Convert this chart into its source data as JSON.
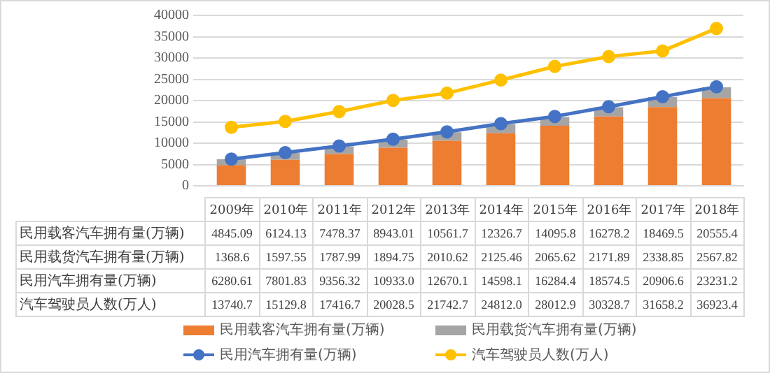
{
  "chart_data": {
    "type": "bar",
    "categories": [
      "2009年",
      "2010年",
      "2011年",
      "2012年",
      "2013年",
      "2014年",
      "2015年",
      "2016年",
      "2017年",
      "2018年"
    ],
    "stacked": true,
    "ylim": [
      0,
      40000
    ],
    "yticks": [
      0,
      5000,
      10000,
      15000,
      20000,
      25000,
      30000,
      35000,
      40000
    ],
    "grid": "y",
    "legend": "bottom",
    "series": [
      {
        "name": "民用载客汽车拥有量(万辆)",
        "color": "#ed7d31",
        "values": [
          4845.09,
          6124.13,
          7478.37,
          8943.01,
          10561.7,
          12326.7,
          14095.8,
          16278.2,
          18469.5,
          20555.4
        ],
        "value_labels": [
          "4845.09",
          "6124.13",
          "7478.37",
          "8943.01",
          "10561.7",
          "12326.7",
          "14095.8",
          "16278.2",
          "18469.5",
          "20555.4"
        ]
      },
      {
        "name": "民用载货汽车拥有量(万辆)",
        "color": "#a5a5a5",
        "values": [
          1368.6,
          1597.55,
          1787.99,
          1894.75,
          2010.62,
          2125.46,
          2065.62,
          2171.89,
          2338.85,
          2567.82
        ],
        "value_labels": [
          "1368.6",
          "1597.55",
          "1787.99",
          "1894.75",
          "2010.62",
          "2125.46",
          "2065.62",
          "2171.89",
          "2338.85",
          "2567.82"
        ]
      },
      {
        "name": "民用汽车拥有量(万辆)",
        "type": "line",
        "color": "#4472c4",
        "marker": "circle",
        "values": [
          6280.61,
          7801.83,
          9356.32,
          10933.0,
          12670.1,
          14598.1,
          16284.4,
          18574.5,
          20906.6,
          23231.2
        ],
        "value_labels": [
          "6280.61",
          "7801.83",
          "9356.32",
          "10933.0",
          "12670.1",
          "14598.1",
          "16284.4",
          "18574.5",
          "20906.6",
          "23231.2"
        ]
      },
      {
        "name": "汽车驾驶员人数(万人)",
        "type": "line",
        "color": "#ffc000",
        "marker": "circle",
        "values": [
          13740.7,
          15129.8,
          17416.7,
          20028.5,
          21742.7,
          24812.0,
          28012.9,
          30328.7,
          31658.2,
          36923.4
        ],
        "value_labels": [
          "13740.7",
          "15129.8",
          "17416.7",
          "20028.5",
          "21742.7",
          "24812.0",
          "28012.9",
          "30328.7",
          "31658.2",
          "36923.4"
        ]
      }
    ]
  }
}
